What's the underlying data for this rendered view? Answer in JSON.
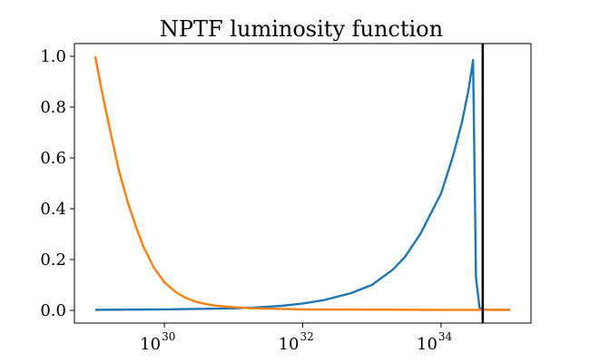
{
  "chart_data": {
    "type": "line",
    "title": "NPTF luminosity function",
    "xlabel": "",
    "ylabel": "",
    "xscale": "log",
    "xlim": [
      1e+29,
      1e+35
    ],
    "ylim": [
      -0.05,
      1.05
    ],
    "grid": false,
    "x_ticks": [
      {
        "base": "10",
        "exp": "30",
        "value": 1e+30
      },
      {
        "base": "10",
        "exp": "32",
        "value": 1e+32
      },
      {
        "base": "10",
        "exp": "34",
        "value": 1e+34
      }
    ],
    "y_ticks": [
      "0.0",
      "0.2",
      "0.4",
      "0.6",
      "0.8",
      "1.0"
    ],
    "series": [
      {
        "color": "#1f77b4",
        "x": [
          1e+29,
          1e+30,
          1e+31,
          2e+31,
          5e+31,
          1e+32,
          2e+32,
          5e+32,
          1e+33,
          2e+33,
          3e+33,
          5e+33,
          1e+34,
          1.5e+34,
          2e+34,
          2.5e+34,
          2.9e+34,
          3.2e+34,
          3.6e+34,
          4e+34,
          5e+34,
          7e+34,
          1e+35
        ],
        "y": [
          0.002,
          0.004,
          0.008,
          0.011,
          0.018,
          0.027,
          0.04,
          0.068,
          0.1,
          0.16,
          0.21,
          0.3,
          0.46,
          0.61,
          0.74,
          0.87,
          0.985,
          0.13,
          0.01,
          0.003,
          0.002,
          0.002,
          0.002
        ]
      },
      {
        "color": "#ff7f0e",
        "x": [
          1e+29,
          1.3e+29,
          1.7e+29,
          2.2e+29,
          3e+29,
          4e+29,
          5e+29,
          7e+29,
          1e+30,
          1.5e+30,
          2e+30,
          3e+30,
          5e+30,
          1e+31,
          2e+31,
          1e+32,
          1e+33,
          1e+34,
          1e+35
        ],
        "y": [
          1.0,
          0.84,
          0.69,
          0.55,
          0.42,
          0.32,
          0.25,
          0.17,
          0.11,
          0.07,
          0.05,
          0.032,
          0.02,
          0.012,
          0.008,
          0.004,
          0.003,
          0.002,
          0.002
        ]
      }
    ],
    "vlines": [
      {
        "x": 4e+34,
        "color": "#000000"
      }
    ]
  }
}
